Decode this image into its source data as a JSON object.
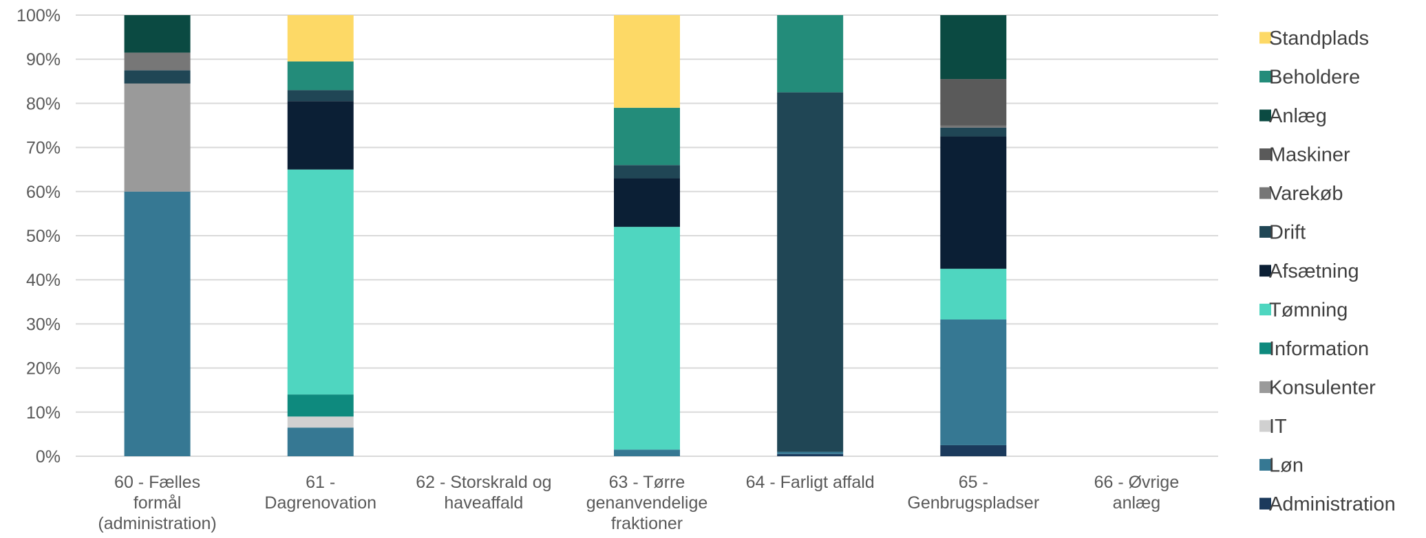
{
  "chart_data": {
    "type": "bar",
    "stacked": true,
    "percent": true,
    "title": "",
    "xlabel": "",
    "ylabel": "",
    "ylim": [
      0,
      100
    ],
    "yticks": [
      "0%",
      "10%",
      "20%",
      "30%",
      "40%",
      "50%",
      "60%",
      "70%",
      "80%",
      "90%",
      "100%"
    ],
    "grid": true,
    "legend_position": "right",
    "categories": [
      [
        "60 - Fælles",
        "formål",
        "(administration)"
      ],
      [
        "61 -",
        "Dagrenovation"
      ],
      [
        "62 - Storskrald og",
        "haveaffald"
      ],
      [
        "63 - Tørre",
        "genanvendelige",
        "fraktioner"
      ],
      [
        "64 - Farligt affald"
      ],
      [
        "65 -",
        "Genbrugspladser"
      ],
      [
        "66 - Øvrige",
        "anlæg"
      ]
    ],
    "series": [
      {
        "name": "Administration",
        "color": "#1b3a5c",
        "values": [
          0,
          0,
          0,
          0,
          0.5,
          2.5,
          0
        ]
      },
      {
        "name": "Løn",
        "color": "#367893",
        "values": [
          60,
          6.5,
          0,
          1.5,
          0.5,
          28.5,
          0
        ]
      },
      {
        "name": "IT",
        "color": "#d0d0d0",
        "values": [
          0,
          2.5,
          0,
          0,
          0,
          0,
          0
        ]
      },
      {
        "name": "Konsulenter",
        "color": "#9a9a9a",
        "values": [
          24.5,
          0,
          0,
          0,
          0,
          0,
          0
        ]
      },
      {
        "name": "Information",
        "color": "#0e8a7e",
        "values": [
          0,
          5,
          0,
          0,
          0,
          0,
          0
        ]
      },
      {
        "name": "Tømning",
        "color": "#4fd6c0",
        "values": [
          0,
          51,
          0,
          50.5,
          0,
          11.5,
          0
        ]
      },
      {
        "name": "Afsætning",
        "color": "#0b1f35",
        "values": [
          0,
          15.5,
          0,
          11,
          0,
          30,
          0
        ]
      },
      {
        "name": "Drift",
        "color": "#204655",
        "values": [
          3,
          2.5,
          0,
          3,
          81.5,
          2,
          0
        ]
      },
      {
        "name": "Varekøb",
        "color": "#777777",
        "values": [
          4,
          0,
          0,
          0,
          0,
          0.5,
          0
        ]
      },
      {
        "name": "Maskiner",
        "color": "#5a5a5a",
        "values": [
          0,
          0,
          0,
          0,
          0,
          10.5,
          0
        ]
      },
      {
        "name": "Anlæg",
        "color": "#0b4a42",
        "values": [
          8.5,
          0,
          0,
          0,
          0,
          14.5,
          0
        ]
      },
      {
        "name": "Beholdere",
        "color": "#238c7a",
        "values": [
          0,
          6.5,
          0,
          13,
          17.5,
          0,
          0
        ]
      },
      {
        "name": "Standplads",
        "color": "#fdd966",
        "values": [
          0,
          10.5,
          0,
          21,
          0,
          0,
          0
        ]
      }
    ]
  }
}
